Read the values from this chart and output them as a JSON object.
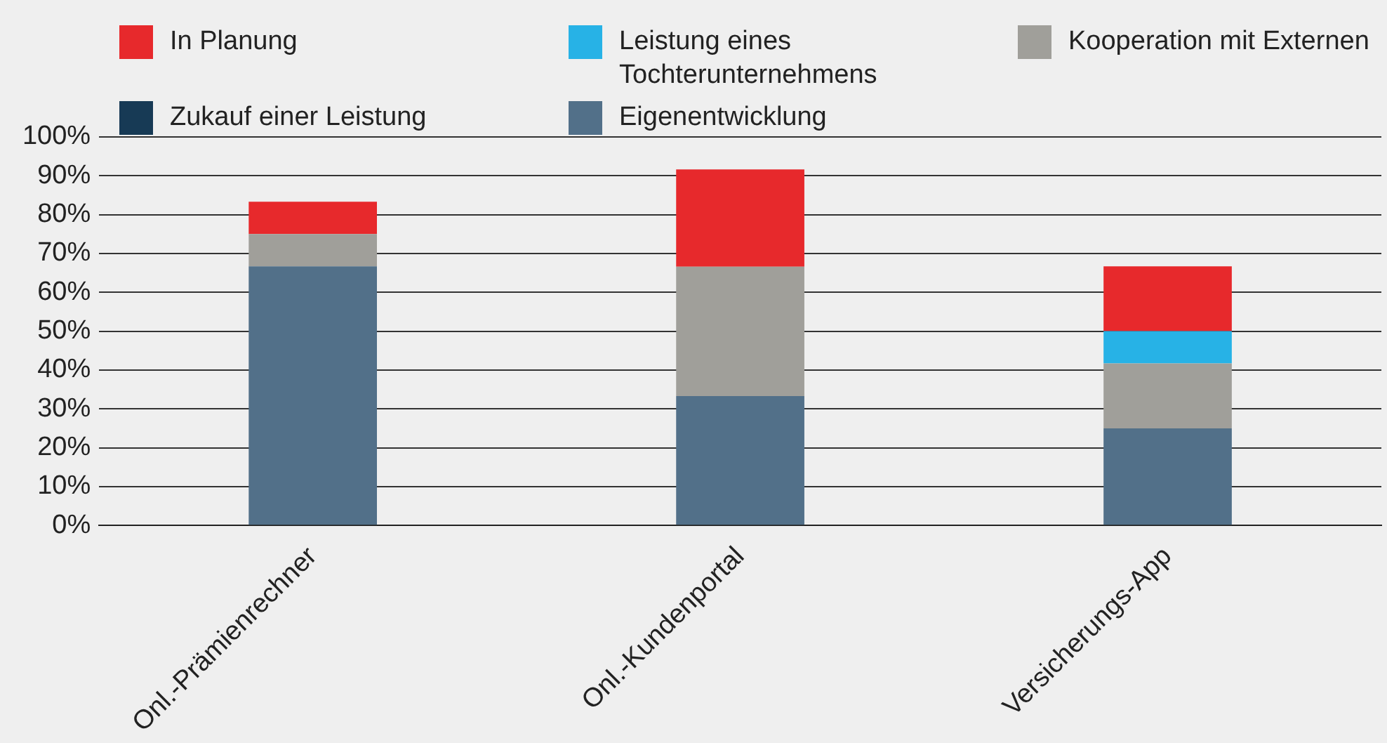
{
  "chart_data": {
    "type": "bar",
    "stacked": true,
    "categories": [
      "Onl.-Prämienrechner",
      "Onl.-Kundenportal",
      "Versicherungs-App"
    ],
    "series": [
      {
        "name": "Eigenentwicklung",
        "color": "#527089",
        "values": [
          66.7,
          33.3,
          25
        ]
      },
      {
        "name": "Zukauf einer Leistung",
        "color": "#173a55",
        "values": [
          0,
          0,
          0
        ]
      },
      {
        "name": "Kooperation mit Externen",
        "color": "#a09f9a",
        "values": [
          8.3,
          33.3,
          16.7
        ]
      },
      {
        "name": "Leistung eines Tochterunternehmens",
        "color": "#27b2e6",
        "values": [
          0,
          0,
          8.3
        ]
      },
      {
        "name": "In Planung",
        "color": "#e7292c",
        "values": [
          8.3,
          25,
          16.7
        ]
      }
    ],
    "ylim": [
      0,
      100
    ],
    "yticks": [
      {
        "value": 0,
        "label": "0%"
      },
      {
        "value": 10,
        "label": "10%"
      },
      {
        "value": 20,
        "label": "20%"
      },
      {
        "value": 30,
        "label": "30%"
      },
      {
        "value": 40,
        "label": "40%"
      },
      {
        "value": 50,
        "label": "50%"
      },
      {
        "value": 60,
        "label": "60%"
      },
      {
        "value": 70,
        "label": "70%"
      },
      {
        "value": 80,
        "label": "80%"
      },
      {
        "value": 90,
        "label": "90%"
      },
      {
        "value": 100,
        "label": "100%"
      }
    ],
    "grid": "y",
    "legend": "top"
  }
}
